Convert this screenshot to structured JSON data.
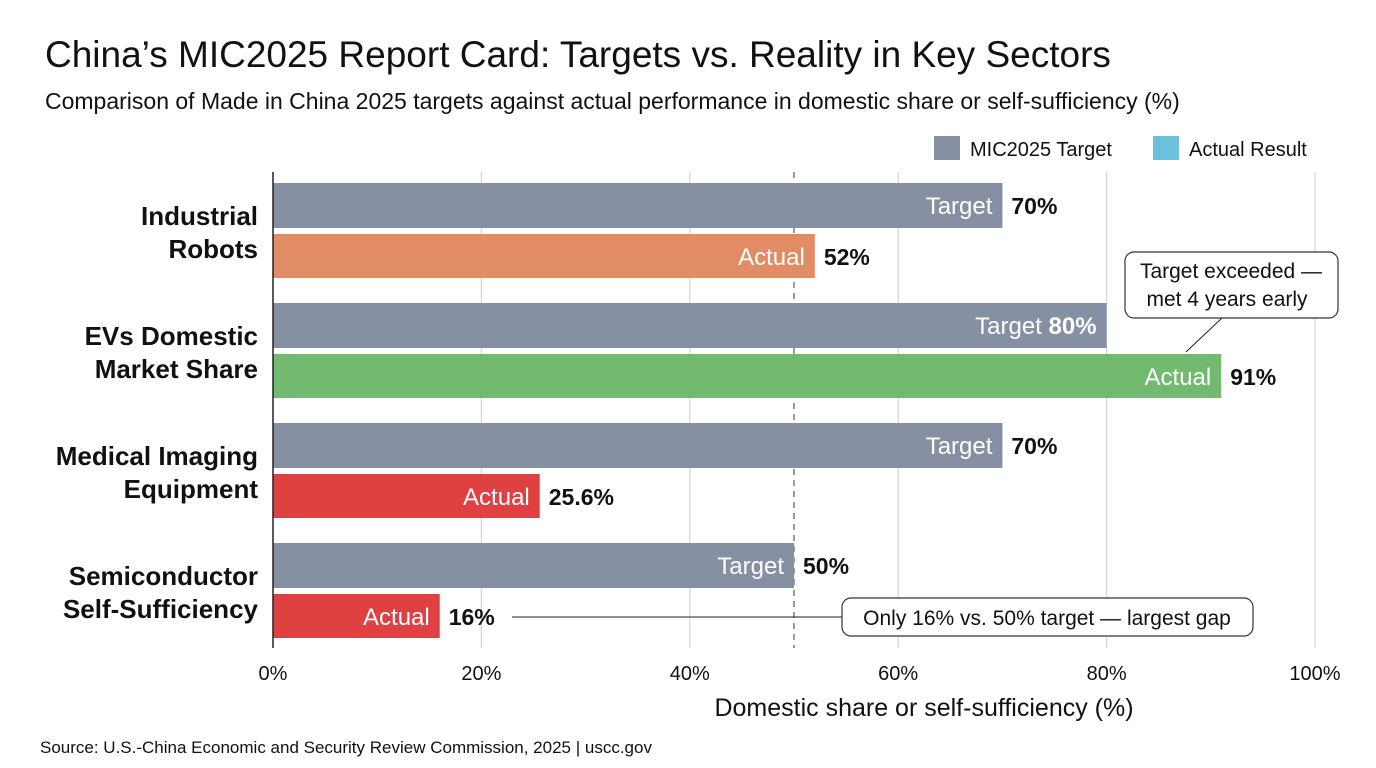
{
  "title": "China’s MIC2025 Report Card: Targets vs. Reality in Key Sectors",
  "subtitle": "Comparison of Made in China 2025 targets against actual performance in domestic share or self-sufficiency (%)",
  "source": "Source: U.S.-China Economic and Security Review Commission, 2025 | uscc.gov",
  "chart_data": {
    "type": "bar",
    "orientation": "horizontal",
    "xlabel": "Domestic share or self-sufficiency (%)",
    "xlim": [
      0,
      100
    ],
    "xticks": [
      0,
      20,
      40,
      60,
      80,
      100
    ],
    "xtick_labels": [
      "0%",
      "20%",
      "40%",
      "60%",
      "80%",
      "100%"
    ],
    "grid": true,
    "reference_line": {
      "x": 50,
      "style": "dashed"
    },
    "legend": {
      "placement": "top-right",
      "entries": [
        {
          "label": "MIC2025 Target",
          "color": "#8690a3"
        },
        {
          "label": "Actual Result",
          "color": "#6cc0dd"
        }
      ]
    },
    "categories": [
      {
        "label": [
          "Industrial",
          "Robots"
        ],
        "target": 70,
        "actual": 52,
        "target_text": "Target",
        "actual_text": "Actual",
        "target_value_label": "70%",
        "actual_value_label": "52%",
        "actual_color": "#e28c66",
        "target_value_inside": false
      },
      {
        "label": [
          "EVs Domestic",
          "Market Share"
        ],
        "target": 80,
        "actual": 91,
        "target_text": "Target",
        "actual_text": "Actual",
        "target_value_label": "80%",
        "actual_value_label": "91%",
        "actual_color": "#72ba6f",
        "target_value_inside": true
      },
      {
        "label": [
          "Medical Imaging",
          "Equipment"
        ],
        "target": 70,
        "actual": 25.6,
        "target_text": "Target",
        "actual_text": "Actual",
        "target_value_label": "70%",
        "actual_value_label": "25.6%",
        "actual_color": "#df4143",
        "target_value_inside": false
      },
      {
        "label": [
          "Semiconductor",
          "Self-Sufficiency"
        ],
        "target": 50,
        "actual": 16,
        "target_text": "Target",
        "actual_text": "Actual",
        "target_value_label": "50%",
        "actual_value_label": "16%",
        "actual_color": "#df4143",
        "target_value_inside": false
      }
    ],
    "target_color": "#8690a3",
    "annotations": [
      {
        "category": 1,
        "bar": "actual",
        "lines": [
          "Target exceeded —",
          "met 4 years early"
        ]
      },
      {
        "category": 3,
        "bar": "actual",
        "lines": [
          "Only 16% vs. 50% target — largest gap"
        ]
      }
    ]
  }
}
